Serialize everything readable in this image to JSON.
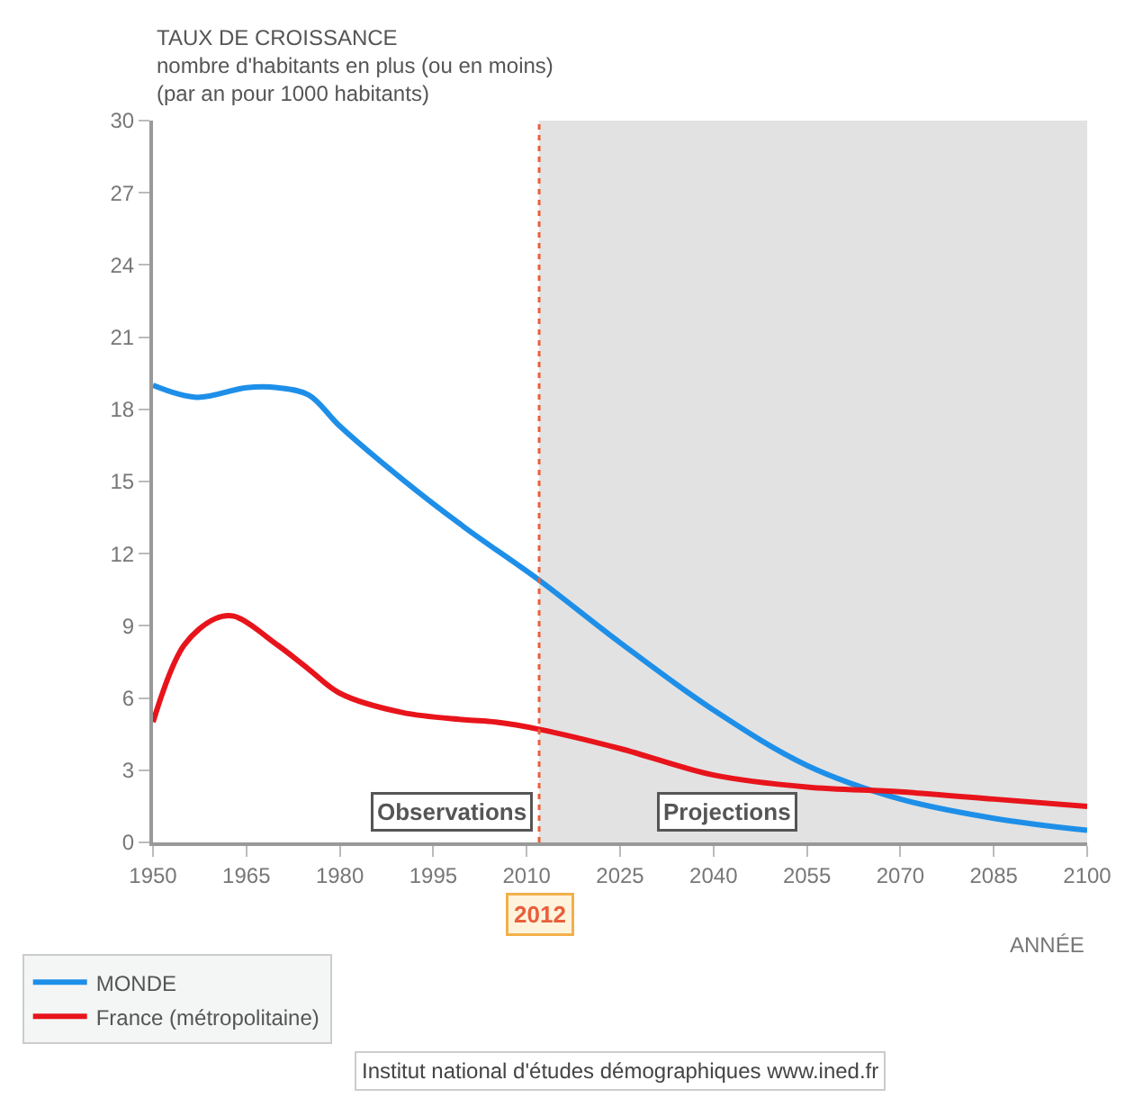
{
  "chart_data": {
    "type": "line",
    "title": "TAUX DE CROISSANCE",
    "ylabel": "nombre d'habitants en plus (ou en moins)\n(par an pour 1000 habitants)",
    "xlabel": "ANNÉE",
    "series": [
      {
        "name": "MONDE",
        "color": "#1e8fe8",
        "x": [
          1950,
          1957,
          1965,
          1970,
          1975,
          1980,
          1990,
          2000,
          2012,
          2025,
          2040,
          2055,
          2070,
          2085,
          2100
        ],
        "values": [
          19.0,
          18.5,
          18.9,
          18.9,
          18.6,
          17.3,
          15.1,
          13.1,
          10.9,
          8.3,
          5.5,
          3.2,
          1.8,
          1.0,
          0.5
        ]
      },
      {
        "name": "France (métropolitaine)",
        "color": "#e8141b",
        "x": [
          1950,
          1955,
          1960,
          1963,
          1970,
          1975,
          1980,
          1990,
          2000,
          2005,
          2012,
          2025,
          2040,
          2055,
          2070,
          2085,
          2100
        ],
        "values": [
          5.0,
          8.2,
          9.3,
          9.4,
          8.2,
          7.2,
          6.2,
          5.4,
          5.1,
          5.0,
          4.7,
          3.9,
          2.8,
          2.3,
          2.1,
          1.8,
          1.5
        ]
      }
    ],
    "xlim": [
      1950,
      2100
    ],
    "ylim": [
      0,
      30
    ],
    "xticks": [
      1950,
      1965,
      1980,
      1995,
      2010,
      2025,
      2040,
      2055,
      2070,
      2085,
      2100
    ],
    "yticks": [
      0,
      3,
      6,
      9,
      12,
      15,
      18,
      21,
      24,
      27,
      30
    ],
    "grid": false,
    "legend": "bottom",
    "marker": "none",
    "line_style": "solid",
    "ref_lines": [
      {
        "axis": "x",
        "value": 2012,
        "label": "2012",
        "color": "#e8603c",
        "line_style": "dotted"
      }
    ],
    "bands": [
      {
        "axis": "x",
        "from": 2012,
        "to": 2100,
        "color": "#e2e2e2"
      }
    ],
    "annotations": [
      "Observations",
      "Projections",
      "Institut national d'études démographiques www.ined.fr"
    ]
  }
}
